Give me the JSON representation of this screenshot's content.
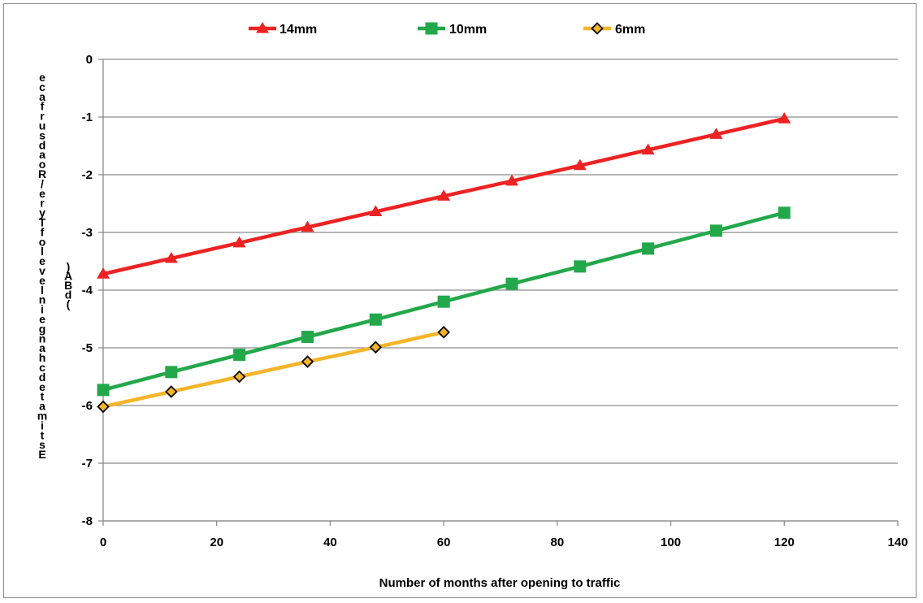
{
  "chart_data": {
    "type": "line",
    "xlabel": "Number of months after opening to traffic",
    "ylabel": "Estimated change in level of Tyre/Road surface (dBA)",
    "xlim": [
      0,
      140
    ],
    "ylim": [
      -8,
      0
    ],
    "x_ticks": [
      "0",
      "20",
      "40",
      "60",
      "80",
      "100",
      "120",
      "140"
    ],
    "y_ticks": [
      "0",
      "-1",
      "-2",
      "-3",
      "-4",
      "-5",
      "-6",
      "-7",
      "-8"
    ],
    "grid": "horizontal",
    "legend_position": "top",
    "series": [
      {
        "name": "14mm",
        "color": "#ee2222",
        "marker": "triangle",
        "x": [
          0,
          12,
          24,
          36,
          48,
          60,
          72,
          84,
          96,
          108,
          120
        ],
        "y": [
          -3.72,
          -3.45,
          -3.18,
          -2.91,
          -2.64,
          -2.37,
          -2.11,
          -1.84,
          -1.57,
          -1.3,
          -1.03
        ]
      },
      {
        "name": "10mm",
        "color": "#22a84a",
        "marker": "square",
        "x": [
          0,
          12,
          24,
          36,
          48,
          60,
          72,
          84,
          96,
          108,
          120
        ],
        "y": [
          -5.73,
          -5.42,
          -5.12,
          -4.81,
          -4.51,
          -4.2,
          -3.89,
          -3.59,
          -3.28,
          -2.97,
          -2.66
        ]
      },
      {
        "name": "6mm",
        "color": "#f5b52a",
        "marker": "diamond",
        "x": [
          0,
          12,
          24,
          36,
          48,
          60
        ],
        "y": [
          -6.02,
          -5.76,
          -5.5,
          -5.24,
          -4.99,
          -4.73
        ]
      }
    ]
  }
}
